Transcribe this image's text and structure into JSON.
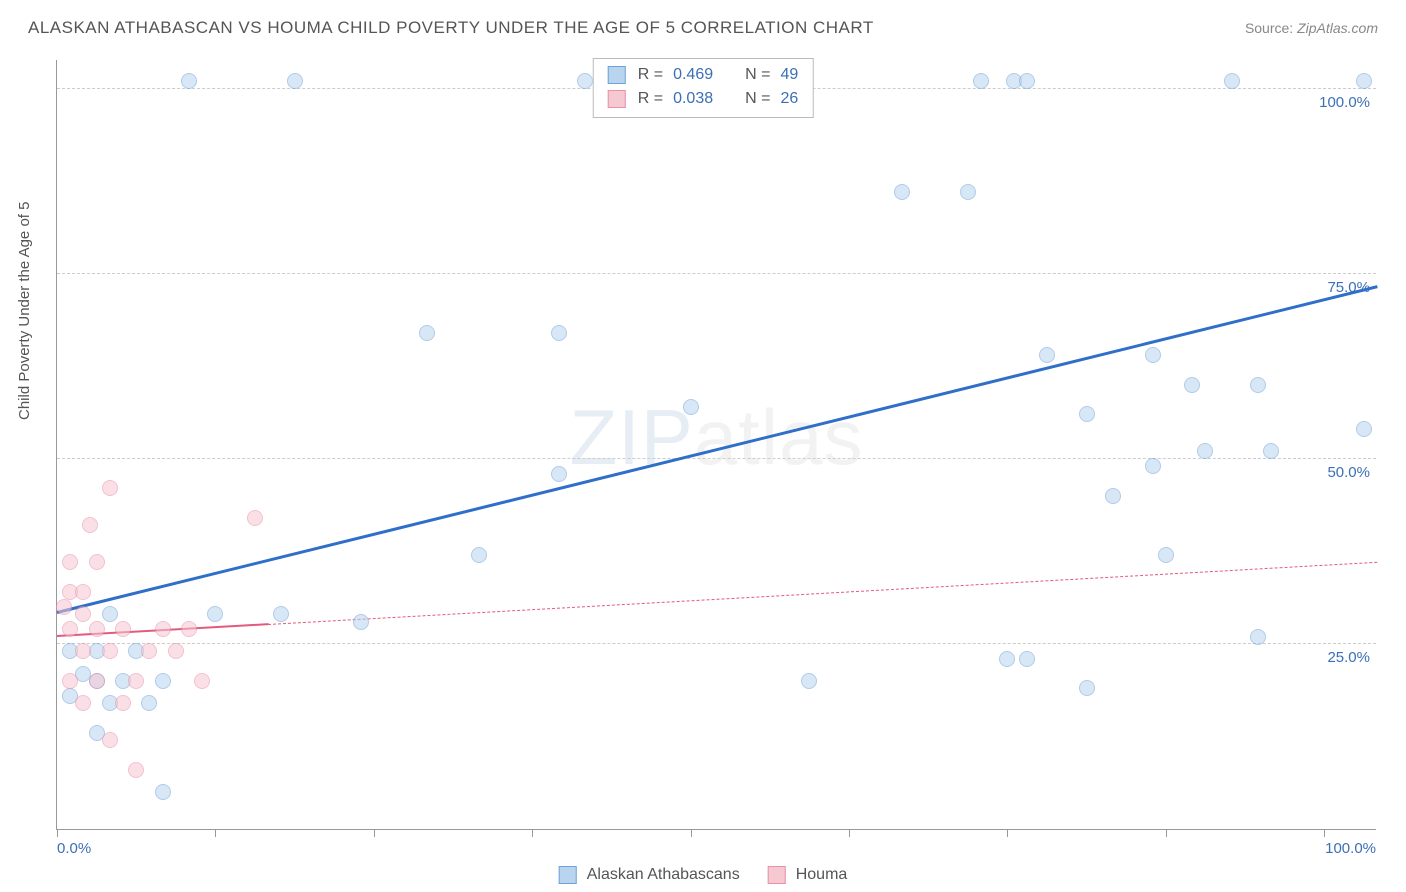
{
  "title": "ALASKAN ATHABASCAN VS HOUMA CHILD POVERTY UNDER THE AGE OF 5 CORRELATION CHART",
  "source_label": "Source:",
  "source_value": "ZipAtlas.com",
  "watermark": "ZIPatlas",
  "ylabel": "Child Poverty Under the Age of 5",
  "chart": {
    "type": "scatter",
    "xlim": [
      0,
      100
    ],
    "ylim": [
      0,
      104
    ],
    "x_ticks": [
      0,
      12,
      24,
      36,
      48,
      60,
      72,
      84,
      96
    ],
    "y_gridlines": [
      25,
      50,
      75,
      100
    ],
    "y_tick_labels": [
      "25.0%",
      "50.0%",
      "75.0%",
      "100.0%"
    ],
    "x_tick_labels": {
      "left": "0.0%",
      "right": "100.0%"
    },
    "background_color": "#ffffff",
    "grid_color": "#cccccc",
    "axis_color": "#999999",
    "marker_radius": 8,
    "marker_opacity": 0.55,
    "series": [
      {
        "name": "Alaskan Athabascans",
        "fill": "#b9d4ef",
        "stroke": "#6fa3d8",
        "trend": {
          "x1": 0,
          "y1": 29,
          "x2": 100,
          "y2": 73,
          "width": 3,
          "color": "#2f6fc9",
          "dash": false
        },
        "stats": {
          "R": "0.469",
          "N": "49"
        },
        "points": [
          [
            10,
            101
          ],
          [
            18,
            101
          ],
          [
            40,
            101
          ],
          [
            42,
            101
          ],
          [
            45,
            101
          ],
          [
            70,
            101
          ],
          [
            72.5,
            101
          ],
          [
            73.5,
            101
          ],
          [
            89,
            101
          ],
          [
            99,
            101
          ],
          [
            64,
            86
          ],
          [
            69,
            86
          ],
          [
            28,
            67
          ],
          [
            38,
            67
          ],
          [
            75,
            64
          ],
          [
            83,
            64
          ],
          [
            48,
            57
          ],
          [
            86,
            60
          ],
          [
            91,
            60
          ],
          [
            78,
            56
          ],
          [
            99,
            54
          ],
          [
            87,
            51
          ],
          [
            92,
            51
          ],
          [
            38,
            48
          ],
          [
            83,
            49
          ],
          [
            80,
            45
          ],
          [
            32,
            37
          ],
          [
            84,
            37
          ],
          [
            4,
            29
          ],
          [
            12,
            29
          ],
          [
            17,
            29
          ],
          [
            23,
            28
          ],
          [
            91,
            26
          ],
          [
            1,
            24
          ],
          [
            3,
            24
          ],
          [
            6,
            24
          ],
          [
            72,
            23
          ],
          [
            73.5,
            23
          ],
          [
            57,
            20
          ],
          [
            78,
            19
          ],
          [
            2,
            21
          ],
          [
            3,
            20
          ],
          [
            5,
            20
          ],
          [
            8,
            20
          ],
          [
            1,
            18
          ],
          [
            4,
            17
          ],
          [
            7,
            17
          ],
          [
            3,
            13
          ],
          [
            8,
            5
          ]
        ]
      },
      {
        "name": "Houma",
        "fill": "#f6c8d2",
        "stroke": "#e890a6",
        "trend": {
          "x1": 0,
          "y1": 26,
          "x2": 100,
          "y2": 36,
          "width": 2,
          "color": "#e25b7e",
          "dash": true,
          "solid_until": 16
        },
        "stats": {
          "R": "0.038",
          "N": "26"
        },
        "points": [
          [
            4,
            46
          ],
          [
            2.5,
            41
          ],
          [
            1,
            36
          ],
          [
            3,
            36
          ],
          [
            15,
            42
          ],
          [
            1,
            32
          ],
          [
            2,
            32
          ],
          [
            0.5,
            30
          ],
          [
            2,
            29
          ],
          [
            1,
            27
          ],
          [
            3,
            27
          ],
          [
            5,
            27
          ],
          [
            8,
            27
          ],
          [
            10,
            27
          ],
          [
            2,
            24
          ],
          [
            4,
            24
          ],
          [
            7,
            24
          ],
          [
            9,
            24
          ],
          [
            1,
            20
          ],
          [
            3,
            20
          ],
          [
            6,
            20
          ],
          [
            11,
            20
          ],
          [
            2,
            17
          ],
          [
            5,
            17
          ],
          [
            4,
            12
          ],
          [
            6,
            8
          ]
        ]
      }
    ]
  },
  "legend": {
    "items": [
      {
        "label": "Alaskan Athabascans",
        "fill": "#b9d4ef",
        "stroke": "#6fa3d8"
      },
      {
        "label": "Houma",
        "fill": "#f6c8d2",
        "stroke": "#e890a6"
      }
    ]
  }
}
